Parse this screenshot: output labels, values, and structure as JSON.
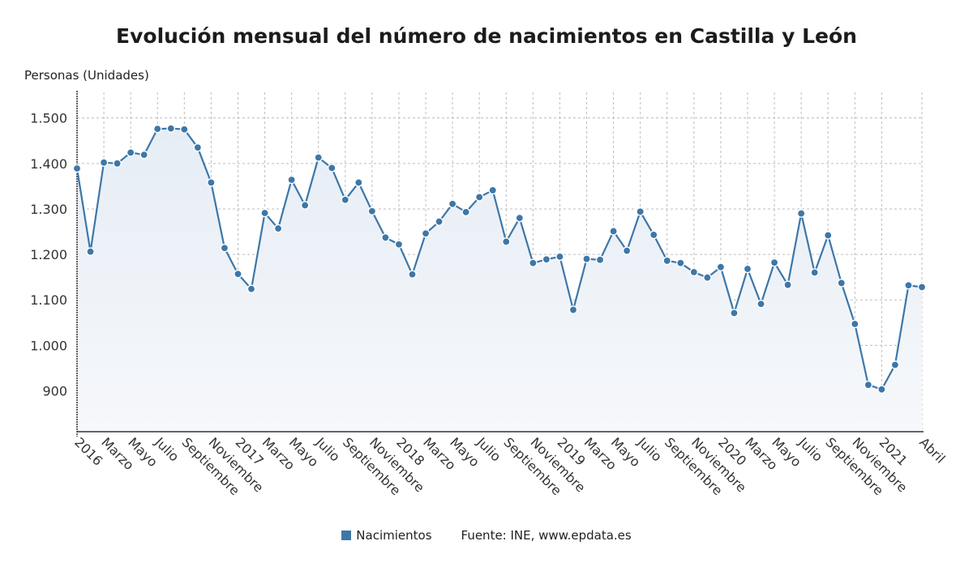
{
  "title": "Evolución mensual del número de nacimientos en Castilla y León",
  "source": "Fuente: INE, www.epdata.es",
  "colors": {
    "line": "#3d77a8",
    "area_top": "#e6edf5",
    "area_bottom": "#f6f8fb",
    "grid": "#bdbdbd"
  },
  "chart_data": {
    "type": "area",
    "ylabel": "Personas (Unidades)",
    "ylim": [
      810,
      1560
    ],
    "yticks": [
      900,
      1000,
      1100,
      1200,
      1300,
      1400,
      1500
    ],
    "ytick_labels": [
      "900",
      "1.000",
      "1.100",
      "1.200",
      "1.300",
      "1.400",
      "1.500"
    ],
    "x_tick_labels": [
      "2016",
      "Marzo",
      "Mayo",
      "Julio",
      "Septiembre",
      "Noviembre",
      "2017",
      "Marzo",
      "Mayo",
      "Julio",
      "Septiembre",
      "Noviembre",
      "2018",
      "Marzo",
      "Mayo",
      "Julio",
      "Septiembre",
      "Noviembre",
      "2019",
      "Marzo",
      "Mayo",
      "Julio",
      "Septiembre",
      "Noviembre",
      "2020",
      "Marzo",
      "Mayo",
      "Julio",
      "Septiembre",
      "Noviembre",
      "2021",
      "Abril"
    ],
    "x_tick_month_index": [
      0,
      2,
      4,
      6,
      8,
      10,
      12,
      14,
      16,
      18,
      20,
      22,
      24,
      26,
      28,
      30,
      32,
      34,
      36,
      38,
      40,
      42,
      44,
      46,
      48,
      50,
      52,
      54,
      56,
      58,
      60,
      63
    ],
    "x": [
      "2016-01",
      "2016-02",
      "2016-03",
      "2016-04",
      "2016-05",
      "2016-06",
      "2016-07",
      "2016-08",
      "2016-09",
      "2016-10",
      "2016-11",
      "2016-12",
      "2017-01",
      "2017-02",
      "2017-03",
      "2017-04",
      "2017-05",
      "2017-06",
      "2017-07",
      "2017-08",
      "2017-09",
      "2017-10",
      "2017-11",
      "2017-12",
      "2018-01",
      "2018-02",
      "2018-03",
      "2018-04",
      "2018-05",
      "2018-06",
      "2018-07",
      "2018-08",
      "2018-09",
      "2018-10",
      "2018-11",
      "2018-12",
      "2019-01",
      "2019-02",
      "2019-03",
      "2019-04",
      "2019-05",
      "2019-06",
      "2019-07",
      "2019-08",
      "2019-09",
      "2019-10",
      "2019-11",
      "2019-12",
      "2020-01",
      "2020-02",
      "2020-03",
      "2020-04",
      "2020-05",
      "2020-06",
      "2020-07",
      "2020-08",
      "2020-09",
      "2020-10",
      "2020-11",
      "2020-12",
      "2021-01",
      "2021-02",
      "2021-03",
      "2021-04"
    ],
    "series": [
      {
        "name": "Nacimientos",
        "values": [
          1389,
          1206,
          1402,
          1400,
          1424,
          1419,
          1476,
          1477,
          1475,
          1435,
          1358,
          1214,
          1157,
          1124,
          1291,
          1257,
          1364,
          1308,
          1413,
          1390,
          1320,
          1358,
          1295,
          1237,
          1222,
          1156,
          1246,
          1272,
          1311,
          1293,
          1326,
          1341,
          1228,
          1280,
          1181,
          1189,
          1195,
          1078,
          1190,
          1188,
          1251,
          1208,
          1294,
          1243,
          1186,
          1181,
          1161,
          1149,
          1172,
          1071,
          1168,
          1091,
          1182,
          1133,
          1290,
          1160,
          1242,
          1137,
          1047,
          913,
          903,
          957,
          1132,
          1128
        ]
      }
    ],
    "grid": true,
    "legend": "bottom-center"
  }
}
